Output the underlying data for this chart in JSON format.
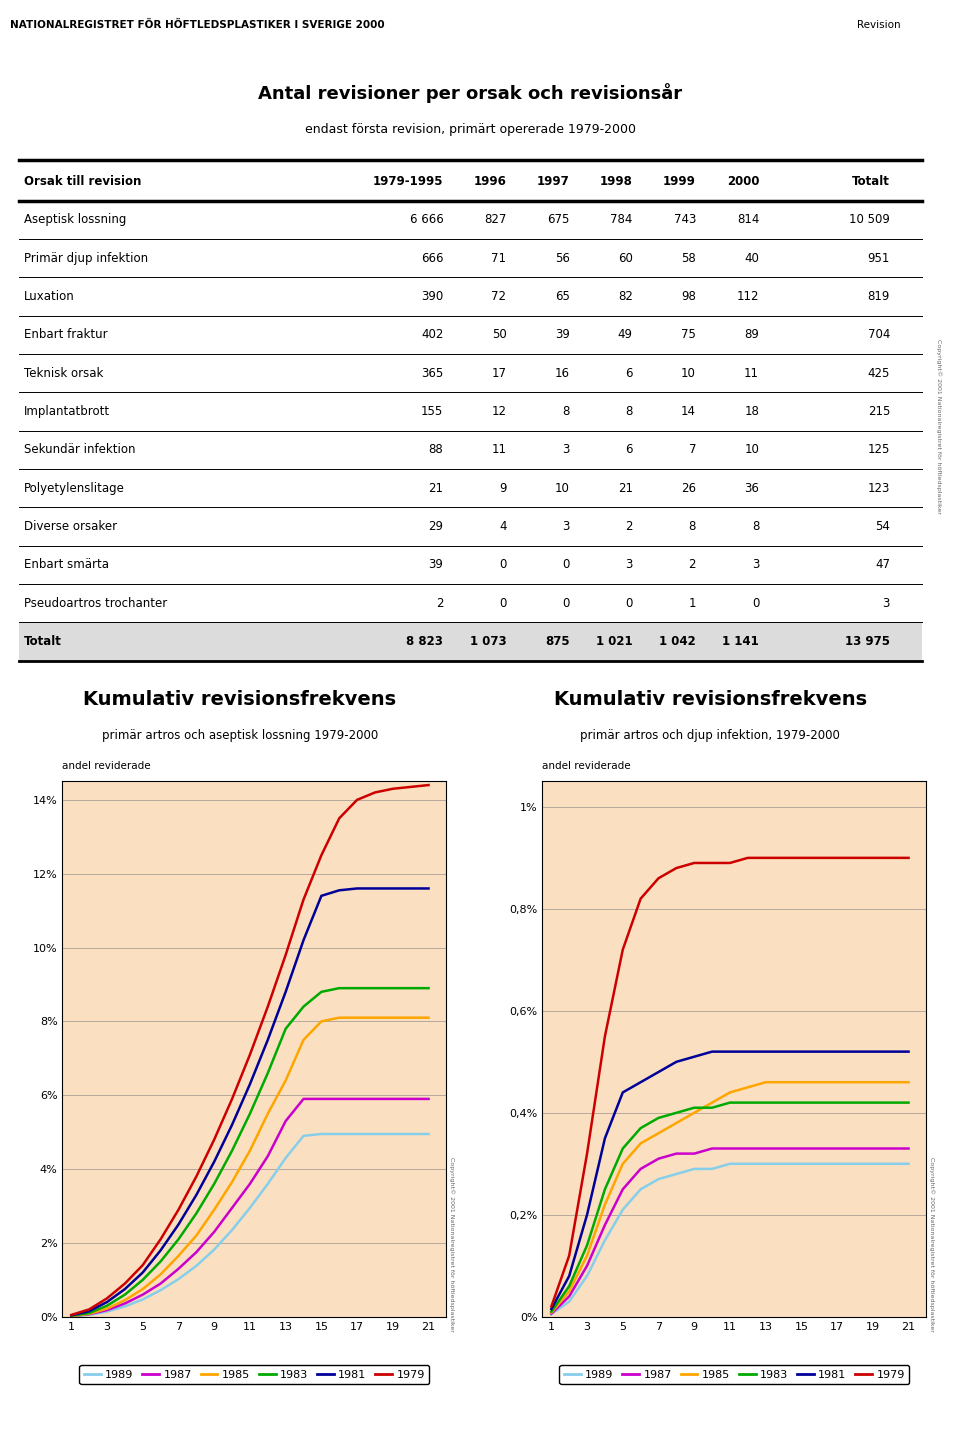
{
  "page_header": "NATIONALREGISTRET FÖR HÖFTLEDSPLASTIKER I SVERIGE 2000",
  "table_title": "Antal revisioner per orsak och revisionsår",
  "table_subtitle": "endast första revision, primärt opererade 1979-2000",
  "table_columns": [
    "Orsak till revision",
    "1979-1995",
    "1996",
    "1997",
    "1998",
    "1999",
    "2000",
    "Totalt"
  ],
  "table_rows": [
    [
      "Aseptisk lossning",
      "6 666",
      "827",
      "675",
      "784",
      "743",
      "814",
      "10 509"
    ],
    [
      "Primär djup infektion",
      "666",
      "71",
      "56",
      "60",
      "58",
      "40",
      "951"
    ],
    [
      "Luxation",
      "390",
      "72",
      "65",
      "82",
      "98",
      "112",
      "819"
    ],
    [
      "Enbart fraktur",
      "402",
      "50",
      "39",
      "49",
      "75",
      "89",
      "704"
    ],
    [
      "Teknisk orsak",
      "365",
      "17",
      "16",
      "6",
      "10",
      "11",
      "425"
    ],
    [
      "Implantatbrott",
      "155",
      "12",
      "8",
      "8",
      "14",
      "18",
      "215"
    ],
    [
      "Sekundär infektion",
      "88",
      "11",
      "3",
      "6",
      "7",
      "10",
      "125"
    ],
    [
      "Polyetylenslitage",
      "21",
      "9",
      "10",
      "21",
      "26",
      "36",
      "123"
    ],
    [
      "Diverse orsaker",
      "29",
      "4",
      "3",
      "2",
      "8",
      "8",
      "54"
    ],
    [
      "Enbart smärta",
      "39",
      "0",
      "0",
      "3",
      "2",
      "3",
      "47"
    ],
    [
      "Pseudoartros trochanter",
      "2",
      "0",
      "0",
      "0",
      "1",
      "0",
      "3"
    ],
    [
      "Totalt",
      "8 823",
      "1 073",
      "875",
      "1 021",
      "1 042",
      "1 141",
      "13 975"
    ]
  ],
  "chart1_title": "Kumulativ revisionsfrekvens",
  "chart1_subtitle": "primär artros och aseptisk lossning 1979-2000",
  "chart1_ylabel": "andel reviderade",
  "chart1_yticks": [
    "0%",
    "2%",
    "4%",
    "6%",
    "8%",
    "10%",
    "12%",
    "14%"
  ],
  "chart1_ytick_vals": [
    0,
    2,
    4,
    6,
    8,
    10,
    12,
    14
  ],
  "chart1_ylim": [
    0,
    14.5
  ],
  "chart2_title": "Kumulativ revisionsfrekvens",
  "chart2_subtitle": "primär artros och djup infektion, 1979-2000",
  "chart2_ylabel": "andel reviderade",
  "chart2_yticks": [
    "0%",
    "0,2%",
    "0,4%",
    "0,6%",
    "0,8%",
    "1%"
  ],
  "chart2_ytick_vals": [
    0,
    0.2,
    0.4,
    0.6,
    0.8,
    1.0
  ],
  "chart2_ylim": [
    0,
    1.05
  ],
  "xticks": [
    1,
    3,
    5,
    7,
    9,
    11,
    13,
    15,
    17,
    19,
    21
  ],
  "legend_entries": [
    "1989",
    "1987",
    "1985",
    "1983",
    "1981",
    "1979"
  ],
  "legend_colors": [
    "#87CEEB",
    "#CC00CC",
    "#FFA500",
    "#00AA00",
    "#000099",
    "#CC0000"
  ],
  "chart_bg": "#FAE0C0",
  "chart1_data": {
    "1979": [
      0.05,
      0.2,
      0.5,
      0.9,
      1.4,
      2.1,
      2.9,
      3.8,
      4.8,
      5.9,
      7.1,
      8.4,
      9.8,
      11.3,
      12.5,
      13.5,
      14.0,
      14.2,
      14.3,
      14.35,
      14.4
    ],
    "1981": [
      0.04,
      0.15,
      0.4,
      0.75,
      1.2,
      1.8,
      2.5,
      3.3,
      4.2,
      5.2,
      6.3,
      7.5,
      8.8,
      10.2,
      11.4,
      11.55,
      11.6,
      11.6,
      11.6,
      11.6,
      11.6
    ],
    "1983": [
      0.03,
      0.1,
      0.3,
      0.6,
      1.0,
      1.5,
      2.1,
      2.8,
      3.6,
      4.5,
      5.5,
      6.6,
      7.8,
      8.4,
      8.8,
      8.9,
      8.9,
      8.9,
      8.9,
      8.9,
      8.9
    ],
    "1985": [
      0.02,
      0.08,
      0.22,
      0.45,
      0.75,
      1.15,
      1.65,
      2.2,
      2.9,
      3.65,
      4.5,
      5.5,
      6.4,
      7.5,
      8.0,
      8.1,
      8.1,
      8.1,
      8.1,
      8.1,
      8.1
    ],
    "1987": [
      0.02,
      0.07,
      0.18,
      0.36,
      0.6,
      0.9,
      1.3,
      1.75,
      2.3,
      2.95,
      3.6,
      4.35,
      5.3,
      5.9,
      5.9,
      5.9,
      5.9,
      5.9,
      5.9,
      5.9,
      5.9
    ],
    "1989": [
      0.01,
      0.05,
      0.14,
      0.28,
      0.47,
      0.72,
      1.02,
      1.38,
      1.82,
      2.35,
      2.95,
      3.6,
      4.3,
      4.9,
      4.95,
      4.95,
      4.95,
      4.95,
      4.95,
      4.95,
      4.95
    ]
  },
  "chart2_data": {
    "1979": [
      0.02,
      0.12,
      0.32,
      0.55,
      0.72,
      0.82,
      0.86,
      0.88,
      0.89,
      0.89,
      0.89,
      0.9,
      0.9,
      0.9,
      0.9,
      0.9,
      0.9,
      0.9,
      0.9,
      0.9,
      0.9
    ],
    "1981": [
      0.015,
      0.08,
      0.2,
      0.35,
      0.44,
      0.46,
      0.48,
      0.5,
      0.51,
      0.52,
      0.52,
      0.52,
      0.52,
      0.52,
      0.52,
      0.52,
      0.52,
      0.52,
      0.52,
      0.52,
      0.52
    ],
    "1983": [
      0.01,
      0.06,
      0.14,
      0.25,
      0.33,
      0.37,
      0.39,
      0.4,
      0.41,
      0.41,
      0.42,
      0.42,
      0.42,
      0.42,
      0.42,
      0.42,
      0.42,
      0.42,
      0.42,
      0.42,
      0.42
    ],
    "1985": [
      0.008,
      0.05,
      0.12,
      0.22,
      0.3,
      0.34,
      0.36,
      0.38,
      0.4,
      0.42,
      0.44,
      0.45,
      0.46,
      0.46,
      0.46,
      0.46,
      0.46,
      0.46,
      0.46,
      0.46,
      0.46
    ],
    "1987": [
      0.006,
      0.04,
      0.1,
      0.18,
      0.25,
      0.29,
      0.31,
      0.32,
      0.32,
      0.33,
      0.33,
      0.33,
      0.33,
      0.33,
      0.33,
      0.33,
      0.33,
      0.33,
      0.33,
      0.33,
      0.33
    ],
    "1989": [
      0.005,
      0.03,
      0.08,
      0.15,
      0.21,
      0.25,
      0.27,
      0.28,
      0.29,
      0.29,
      0.3,
      0.3,
      0.3,
      0.3,
      0.3,
      0.3,
      0.3,
      0.3,
      0.3,
      0.3,
      0.3
    ]
  }
}
